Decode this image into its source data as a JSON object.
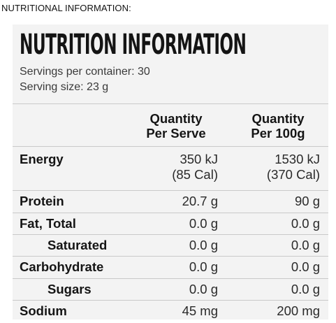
{
  "page_heading": "NUTRITIONAL INFORMATION:",
  "panel": {
    "title": "NUTRITION INFORMATION",
    "servings_per_container": "Servings per container: 30",
    "serving_size": "Serving size: 23 g"
  },
  "table": {
    "headers": {
      "per_serve_line1": "Quantity",
      "per_serve_line2": "Per Serve",
      "per_100g_line1": "Quantity",
      "per_100g_line2": "Per 100g"
    },
    "rows": [
      {
        "name": "Energy",
        "per_serve": "350 kJ",
        "per_serve_2": "(85 Cal)",
        "per_100g": "1530 kJ",
        "per_100g_2": "(370 Cal)"
      },
      {
        "name": "Protein",
        "per_serve": "20.7 g",
        "per_100g": "90 g"
      },
      {
        "name": "Fat, Total",
        "per_serve": "0.0 g",
        "per_100g": "0.0 g"
      },
      {
        "name": "Saturated",
        "per_serve": "0.0 g",
        "per_100g": "0.0 g"
      },
      {
        "name": "Carbohydrate",
        "per_serve": "0.0 g",
        "per_100g": "0.0 g"
      },
      {
        "name": "Sugars",
        "per_serve": "0.0 g",
        "per_100g": "0.0 g"
      },
      {
        "name": "Sodium",
        "per_serve": "45 mg",
        "per_100g": "200 mg"
      }
    ]
  }
}
